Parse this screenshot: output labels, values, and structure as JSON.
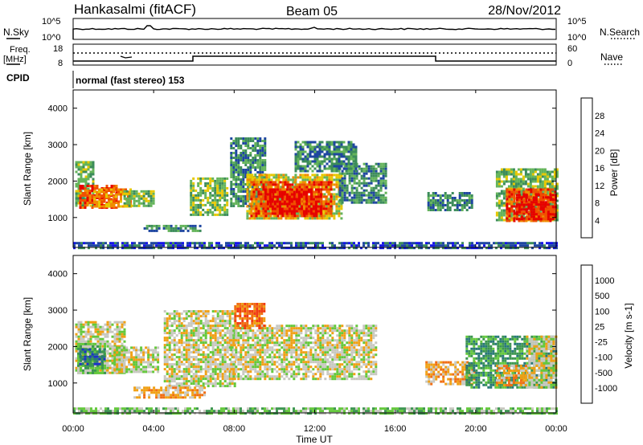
{
  "header": {
    "station": "Hankasalmi (fitACF)",
    "beam": "Beam 05",
    "date": "28/Nov/2012"
  },
  "noise_panel": {
    "left_label": "N.Sky",
    "left_ticks": [
      "10^5",
      "10^0"
    ],
    "right_ticks": [
      "10^5",
      "10^0"
    ],
    "right_label": "N.Search"
  },
  "freq_panel": {
    "left_label_1": "Freq.",
    "left_label_2": "[MHz]",
    "left_ticks": [
      "18",
      "8"
    ],
    "right_ticks": [
      "60",
      "0"
    ],
    "right_label": "Nave"
  },
  "cpid": {
    "label": "CPID",
    "mode": "normal (fast stereo) 153"
  },
  "time_axis": {
    "label": "Time UT",
    "ticks": [
      "00:00",
      "04:00",
      "08:00",
      "12:00",
      "16:00",
      "20:00",
      "00:00"
    ]
  },
  "chart_data": [
    {
      "type": "heatmap",
      "name": "power",
      "ylabel": "Slant Range [km]",
      "yticks": [
        "1000",
        "2000",
        "3000",
        "4000"
      ],
      "ylim": [
        180,
        4500
      ],
      "xlim_hours": [
        0,
        24
      ],
      "colorbar": {
        "label": "Power [dB]",
        "ticks": [
          "4",
          "8",
          "12",
          "16",
          "20",
          "24",
          "28"
        ],
        "colors": [
          "#1414e6",
          "#1e46a0",
          "#3c8c5a",
          "#64b45a",
          "#e6c800",
          "#f08c00",
          "#f05000",
          "#e60000"
        ]
      },
      "regions": [
        {
          "t0": 0.1,
          "t1": 1.0,
          "r0": 1300,
          "r1": 2550,
          "level": 3
        },
        {
          "t0": 0.3,
          "t1": 2.2,
          "r0": 1250,
          "r1": 1900,
          "level": 6
        },
        {
          "t0": 1.0,
          "t1": 2.8,
          "r0": 1300,
          "r1": 1800,
          "level": 5
        },
        {
          "t0": 2.5,
          "t1": 4.0,
          "r0": 1350,
          "r1": 1750,
          "level": 3
        },
        {
          "t0": 5.8,
          "t1": 7.7,
          "r0": 1050,
          "r1": 2100,
          "level": 3
        },
        {
          "t0": 3.5,
          "t1": 6.3,
          "r0": 650,
          "r1": 800,
          "level": 2
        },
        {
          "t0": 7.8,
          "t1": 9.5,
          "r0": 1300,
          "r1": 3200,
          "level": 2
        },
        {
          "t0": 8.6,
          "t1": 13.3,
          "r0": 1000,
          "r1": 2200,
          "level": 4
        },
        {
          "t0": 8.8,
          "t1": 12.8,
          "r0": 1050,
          "r1": 2000,
          "level": 6
        },
        {
          "t0": 9.5,
          "t1": 12.3,
          "r0": 1100,
          "r1": 1800,
          "level": 7
        },
        {
          "t0": 13.2,
          "t1": 15.5,
          "r0": 1400,
          "r1": 2500,
          "level": 2
        },
        {
          "t0": 11.0,
          "t1": 14.0,
          "r0": 2300,
          "r1": 3100,
          "level": 2
        },
        {
          "t0": 17.6,
          "t1": 19.8,
          "r0": 1200,
          "r1": 1700,
          "level": 2
        },
        {
          "t0": 21.0,
          "t1": 24.0,
          "r0": 900,
          "r1": 2350,
          "level": 3
        },
        {
          "t0": 21.5,
          "t1": 24.0,
          "r0": 900,
          "r1": 1800,
          "level": 6
        },
        {
          "t0": 22.0,
          "t1": 24.0,
          "r0": 950,
          "r1": 1650,
          "level": 7
        },
        {
          "t0": 0.0,
          "t1": 24.0,
          "r0": 180,
          "r1": 330,
          "level": 1
        }
      ]
    },
    {
      "type": "heatmap",
      "name": "velocity",
      "ylabel": "Slant Range [km]",
      "yticks": [
        "1000",
        "2000",
        "3000",
        "4000"
      ],
      "ylim": [
        180,
        4500
      ],
      "xlim_hours": [
        0,
        24
      ],
      "colorbar": {
        "label": "Velocity [m s-1]",
        "ticks": [
          "1000",
          "500",
          "100",
          "25",
          "-25",
          "-100",
          "-500",
          "-1000"
        ],
        "colors": [
          "#1e32c8",
          "#287878",
          "#3c9650",
          "#64c83c",
          "#c8c8c0",
          "#f0a014",
          "#f06e14",
          "#f03c14",
          "#e60000"
        ]
      },
      "regions": [
        {
          "t0": 0.1,
          "t1": 2.5,
          "r0": 1250,
          "r1": 2700,
          "level": 4
        },
        {
          "t0": 0.2,
          "t1": 1.6,
          "r0": 1250,
          "r1": 2100,
          "level": 3
        },
        {
          "t0": 0.3,
          "t1": 1.5,
          "r0": 1550,
          "r1": 1950,
          "level": 1
        },
        {
          "t0": 2.0,
          "t1": 4.2,
          "r0": 1300,
          "r1": 2000,
          "level": 4
        },
        {
          "t0": 4.5,
          "t1": 8.0,
          "r0": 900,
          "r1": 3000,
          "level": 4
        },
        {
          "t0": 7.8,
          "t1": 15.0,
          "r0": 1100,
          "r1": 2600,
          "level": 4
        },
        {
          "t0": 8.0,
          "t1": 9.5,
          "r0": 2500,
          "r1": 3200,
          "level": 6
        },
        {
          "t0": 3.0,
          "t1": 6.5,
          "r0": 600,
          "r1": 900,
          "level": 5
        },
        {
          "t0": 17.5,
          "t1": 20.0,
          "r0": 1000,
          "r1": 1600,
          "level": 5
        },
        {
          "t0": 19.5,
          "t1": 24.0,
          "r0": 900,
          "r1": 2300,
          "level": 2
        },
        {
          "t0": 22.5,
          "t1": 24.0,
          "r0": 900,
          "r1": 2300,
          "level": 4
        },
        {
          "t0": 21.0,
          "t1": 22.5,
          "r0": 950,
          "r1": 1500,
          "level": 5
        },
        {
          "t0": 0.0,
          "t1": 24.0,
          "r0": 180,
          "r1": 330,
          "level": 3
        }
      ]
    }
  ]
}
